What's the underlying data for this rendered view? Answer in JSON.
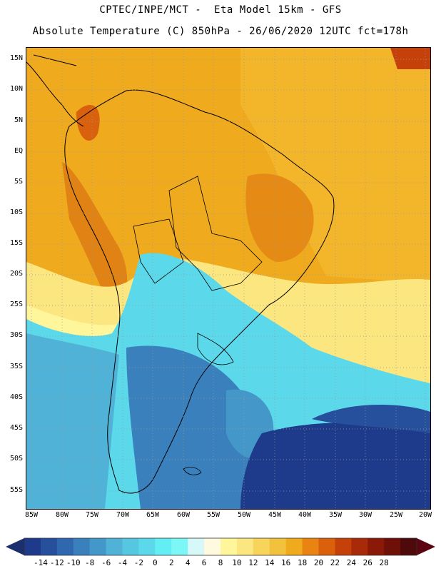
{
  "header": {
    "line1": "CPTEC/INPE/MCT -  Eta Model 15km - GFS",
    "line2": "Absolute Temperature (C) 850hPa - 26/06/2020 12UTC fct=178h"
  },
  "map": {
    "latitude_labels": [
      "15N",
      "10N",
      "5N",
      "EQ",
      "5S",
      "10S",
      "15S",
      "20S",
      "25S",
      "30S",
      "35S",
      "40S",
      "45S",
      "50S",
      "55S"
    ],
    "longitude_labels": [
      "85W",
      "80W",
      "75W",
      "70W",
      "65W",
      "60W",
      "55W",
      "50W",
      "45W",
      "40W",
      "35W",
      "30W",
      "25W",
      "20W"
    ]
  },
  "colorbar": {
    "tick_labels": [
      "-14",
      "-12",
      "-10",
      "-8",
      "-6",
      "-4",
      "-2",
      "0",
      "2",
      "4",
      "6",
      "8",
      "10",
      "12",
      "14",
      "16",
      "18",
      "20",
      "22",
      "24",
      "26",
      "28"
    ],
    "colors": [
      "#1e3a8a",
      "#264f9c",
      "#2f68ae",
      "#3a80bd",
      "#4498c9",
      "#4fb2d6",
      "#55c7e0",
      "#5bd9ea",
      "#63eef3",
      "#7cf7f7",
      "#d7f8f8",
      "#fff9e0",
      "#fff59a",
      "#fbe680",
      "#f7d45a",
      "#f3c23c",
      "#efaa1e",
      "#e98412",
      "#db600c",
      "#c64109",
      "#a92a08",
      "#8a1a07",
      "#6e1007",
      "#4e0a0a"
    ],
    "underflow_color": "#1b2f6e",
    "overflow_color": "#5b0412"
  }
}
